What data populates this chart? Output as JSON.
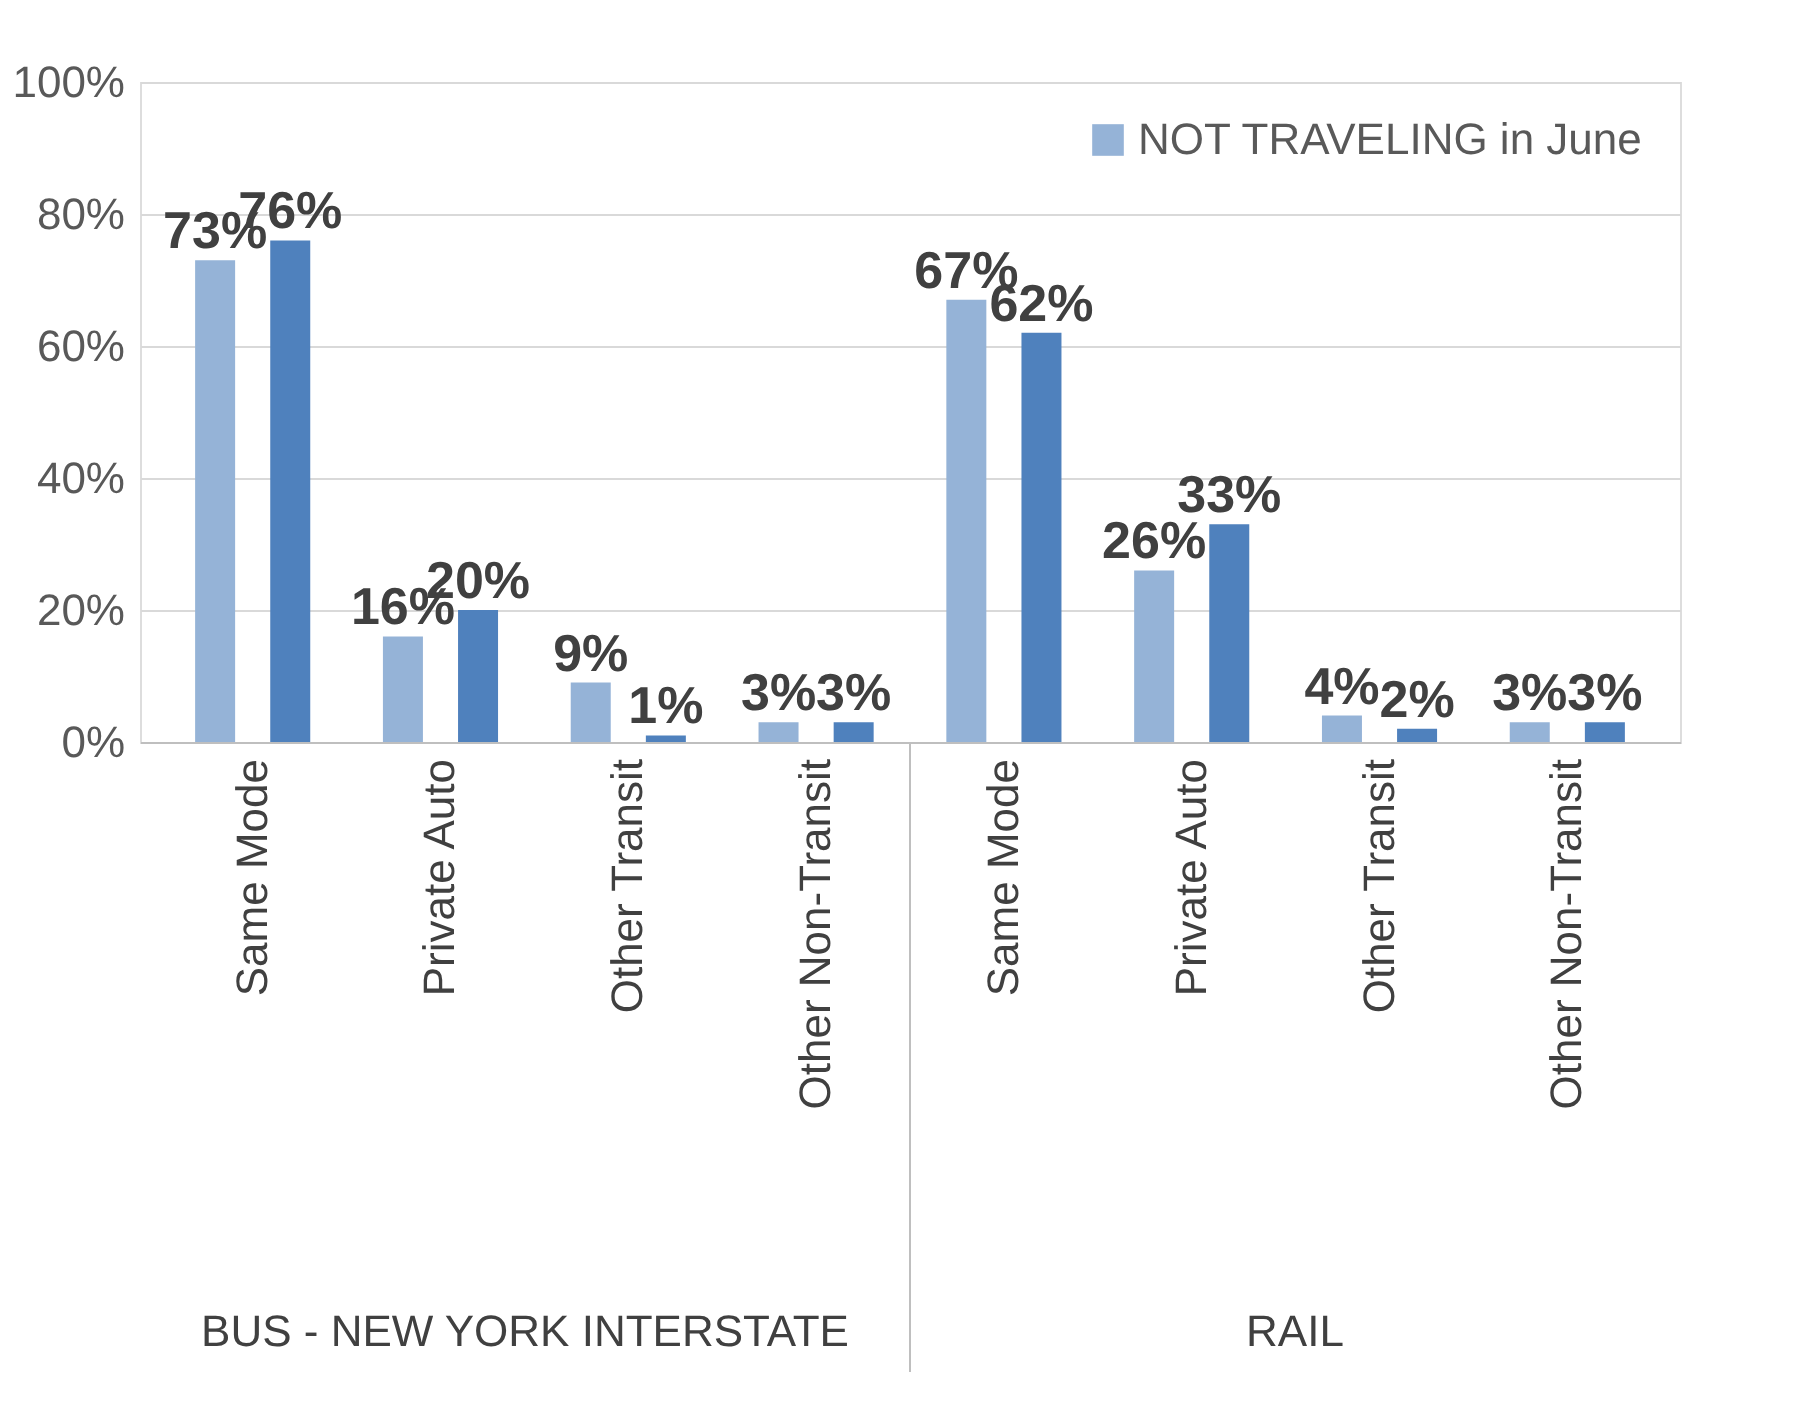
{
  "chart_data": {
    "type": "bar",
    "categories": [
      "Same Mode",
      "Private Auto",
      "Other Transit",
      "Other Non-Transit",
      "Same Mode",
      "Private Auto",
      "Other Transit",
      "Other Non-Transit"
    ],
    "series": [
      {
        "name": "NOT TRAVELING in June",
        "color": "#95b3d7",
        "values": [
          73,
          16,
          9,
          3,
          67,
          26,
          4,
          3
        ],
        "value_labels": [
          "73%",
          "16%",
          "9%",
          "3%",
          "67%",
          "26%",
          "4%",
          "3%"
        ]
      },
      {
        "color": "#4f81bd",
        "values": [
          76,
          20,
          1,
          3,
          62,
          33,
          2,
          3
        ],
        "value_labels": [
          "76%",
          "20%",
          "1%",
          "3%",
          "62%",
          "33%",
          "2%",
          "3%"
        ]
      }
    ],
    "ylim": [
      0,
      100
    ],
    "yticks": [
      {
        "value": 0,
        "label": "0%"
      },
      {
        "value": 20,
        "label": "20%"
      },
      {
        "value": 40,
        "label": "40%"
      },
      {
        "value": 60,
        "label": "60%"
      },
      {
        "value": 80,
        "label": "80%"
      },
      {
        "value": 100,
        "label": "100%"
      }
    ],
    "annotations": [
      "BUS - NEW YORK INTERSTATE",
      "RAIL"
    ],
    "grid": "y",
    "legend": "top right"
  }
}
